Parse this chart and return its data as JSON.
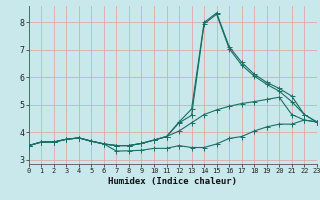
{
  "xlabel": "Humidex (Indice chaleur)",
  "background_color": "#c8e8ec",
  "grid_color": "#e0a8a8",
  "line_color": "#1a6e64",
  "xlim": [
    0,
    23
  ],
  "ylim": [
    2.85,
    8.6
  ],
  "xticks": [
    0,
    1,
    2,
    3,
    4,
    5,
    6,
    7,
    8,
    9,
    10,
    11,
    12,
    13,
    14,
    15,
    16,
    17,
    18,
    19,
    20,
    21,
    22,
    23
  ],
  "yticks": [
    3,
    4,
    5,
    6,
    7,
    8
  ],
  "line1_x": [
    0,
    1,
    2,
    3,
    4,
    5,
    6,
    7,
    8,
    9,
    10,
    11,
    12,
    13,
    14,
    15,
    16,
    17,
    18,
    19,
    20,
    21,
    22,
    23
  ],
  "line1_y": [
    3.52,
    3.65,
    3.65,
    3.75,
    3.8,
    3.68,
    3.58,
    3.32,
    3.33,
    3.35,
    3.42,
    3.42,
    3.52,
    3.45,
    3.45,
    3.58,
    3.78,
    3.85,
    4.05,
    4.2,
    4.3,
    4.3,
    4.45,
    4.38
  ],
  "line2_x": [
    0,
    1,
    2,
    3,
    4,
    5,
    6,
    7,
    8,
    9,
    10,
    11,
    12,
    13,
    14,
    15,
    16,
    17,
    18,
    19,
    20,
    21,
    22,
    23
  ],
  "line2_y": [
    3.52,
    3.65,
    3.65,
    3.75,
    3.8,
    3.68,
    3.58,
    3.52,
    3.52,
    3.6,
    3.72,
    3.85,
    4.05,
    4.35,
    4.65,
    4.82,
    4.95,
    5.05,
    5.12,
    5.2,
    5.28,
    4.65,
    4.45,
    4.38
  ],
  "line3_x": [
    0,
    1,
    2,
    3,
    4,
    5,
    6,
    7,
    8,
    9,
    10,
    11,
    12,
    13,
    14,
    15,
    16,
    17,
    18,
    19,
    20,
    21,
    22,
    23
  ],
  "line3_y": [
    3.52,
    3.65,
    3.65,
    3.75,
    3.8,
    3.68,
    3.58,
    3.52,
    3.52,
    3.6,
    3.72,
    3.85,
    4.35,
    4.62,
    7.95,
    8.3,
    7.05,
    6.45,
    6.05,
    5.75,
    5.5,
    5.12,
    4.65,
    4.38
  ],
  "line4_x": [
    0,
    1,
    2,
    3,
    4,
    5,
    6,
    7,
    8,
    9,
    10,
    11,
    12,
    13,
    14,
    15,
    16,
    17,
    18,
    19,
    20,
    21,
    22,
    23
  ],
  "line4_y": [
    3.52,
    3.65,
    3.65,
    3.75,
    3.8,
    3.68,
    3.58,
    3.52,
    3.52,
    3.6,
    3.72,
    3.85,
    4.38,
    4.85,
    8.0,
    8.35,
    7.12,
    6.55,
    6.12,
    5.82,
    5.6,
    5.32,
    4.65,
    4.38
  ]
}
